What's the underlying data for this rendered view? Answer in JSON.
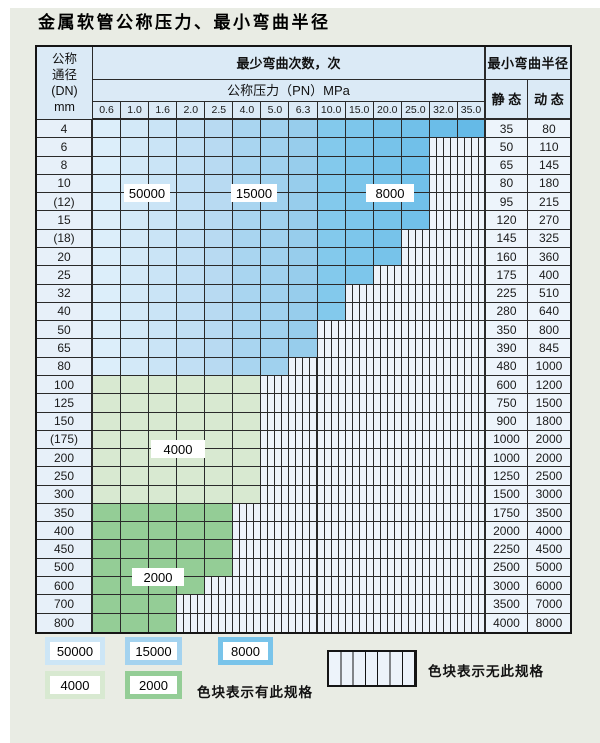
{
  "title": "金属软管公称压力、最小弯曲半径",
  "table": {
    "header": {
      "dn_lines": [
        "公称",
        "通径",
        "(DN)",
        "mm"
      ],
      "bend_cycles_label": "最少弯曲次数，次",
      "pressure_label": "公称压力（PN）MPa",
      "radius_label": "最小弯曲半径",
      "static_label": "静 态",
      "dynamic_label": "动 态",
      "pressures": [
        "0.6",
        "1.0",
        "1.6",
        "2.0",
        "2.5",
        "4.0",
        "5.0",
        "6.3",
        "10.0",
        "15.0",
        "20.0",
        "25.0",
        "32.0",
        "35.0"
      ]
    },
    "rows": [
      {
        "dn": "4",
        "static": "35",
        "dynamic": "80",
        "band": "blue",
        "specified_through": "35.0"
      },
      {
        "dn": "6",
        "static": "50",
        "dynamic": "110",
        "band": "blue",
        "specified_through": "25.0"
      },
      {
        "dn": "8",
        "static": "65",
        "dynamic": "145",
        "band": "blue",
        "specified_through": "25.0"
      },
      {
        "dn": "10",
        "static": "80",
        "dynamic": "180",
        "band": "blue",
        "specified_through": "25.0"
      },
      {
        "dn": "(12)",
        "static": "95",
        "dynamic": "215",
        "band": "blue",
        "specified_through": "25.0"
      },
      {
        "dn": "15",
        "static": "120",
        "dynamic": "270",
        "band": "blue",
        "specified_through": "25.0"
      },
      {
        "dn": "(18)",
        "static": "145",
        "dynamic": "325",
        "band": "blue",
        "specified_through": "20.0"
      },
      {
        "dn": "20",
        "static": "160",
        "dynamic": "360",
        "band": "blue",
        "specified_through": "20.0"
      },
      {
        "dn": "25",
        "static": "175",
        "dynamic": "400",
        "band": "blue",
        "specified_through": "15.0"
      },
      {
        "dn": "32",
        "static": "225",
        "dynamic": "510",
        "band": "blue",
        "specified_through": "10.0"
      },
      {
        "dn": "40",
        "static": "280",
        "dynamic": "640",
        "band": "blue",
        "specified_through": "10.0"
      },
      {
        "dn": "50",
        "static": "350",
        "dynamic": "800",
        "band": "blue",
        "specified_through": "6.3"
      },
      {
        "dn": "65",
        "static": "390",
        "dynamic": "845",
        "band": "blue",
        "specified_through": "6.3"
      },
      {
        "dn": "80",
        "static": "480",
        "dynamic": "1000",
        "band": "blue",
        "specified_through": "5.0"
      },
      {
        "dn": "100",
        "static": "600",
        "dynamic": "1200",
        "band": "green-4000",
        "specified_through": "4.0"
      },
      {
        "dn": "125",
        "static": "750",
        "dynamic": "1500",
        "band": "green-4000",
        "specified_through": "4.0"
      },
      {
        "dn": "150",
        "static": "900",
        "dynamic": "1800",
        "band": "green-4000",
        "specified_through": "4.0"
      },
      {
        "dn": "(175)",
        "static": "1000",
        "dynamic": "2000",
        "band": "green-4000",
        "specified_through": "4.0"
      },
      {
        "dn": "200",
        "static": "1000",
        "dynamic": "2000",
        "band": "green-4000",
        "specified_through": "4.0"
      },
      {
        "dn": "250",
        "static": "1250",
        "dynamic": "2500",
        "band": "green-4000",
        "specified_through": "4.0"
      },
      {
        "dn": "300",
        "static": "1500",
        "dynamic": "3000",
        "band": "green-4000",
        "specified_through": "4.0"
      },
      {
        "dn": "350",
        "static": "1750",
        "dynamic": "3500",
        "band": "green-2000",
        "specified_through": "2.5"
      },
      {
        "dn": "400",
        "static": "2000",
        "dynamic": "4000",
        "band": "green-2000",
        "specified_through": "2.5"
      },
      {
        "dn": "450",
        "static": "2250",
        "dynamic": "4500",
        "band": "green-2000",
        "specified_through": "2.5"
      },
      {
        "dn": "500",
        "static": "2500",
        "dynamic": "5000",
        "band": "green-2000",
        "specified_through": "2.5"
      },
      {
        "dn": "600",
        "static": "3000",
        "dynamic": "6000",
        "band": "green-2000",
        "specified_through": "2.0"
      },
      {
        "dn": "700",
        "static": "3500",
        "dynamic": "7000",
        "band": "green-2000",
        "specified_through": "1.6"
      },
      {
        "dn": "800",
        "static": "4000",
        "dynamic": "8000",
        "band": "green-2000",
        "specified_through": "1.6"
      }
    ],
    "cycle_labels": [
      {
        "value": "50000"
      },
      {
        "value": "15000"
      },
      {
        "value": "8000"
      },
      {
        "value": "4000"
      },
      {
        "value": "2000"
      }
    ]
  },
  "legend": {
    "items": [
      {
        "value": "50000",
        "color": "#cde6f6"
      },
      {
        "value": "15000",
        "color": "#a4d3ef"
      },
      {
        "value": "8000",
        "color": "#79c4ea"
      },
      {
        "value": "4000",
        "color": "#d8e9d1"
      },
      {
        "value": "2000",
        "color": "#94cd96"
      }
    ],
    "has_spec_text": "色块表示有此规格",
    "no_spec_text": "色块表示无此规格"
  },
  "palette": {
    "c50000": "#cde6f6",
    "c15000": "#a4d3ef",
    "c8000": "#79c4ea",
    "c4000": "#d8e9d1",
    "c2000": "#94cd96",
    "hatch_bg": "#edf3fa",
    "header_bg": "#dbeaf6",
    "panel_bg": "#e9ece4"
  }
}
